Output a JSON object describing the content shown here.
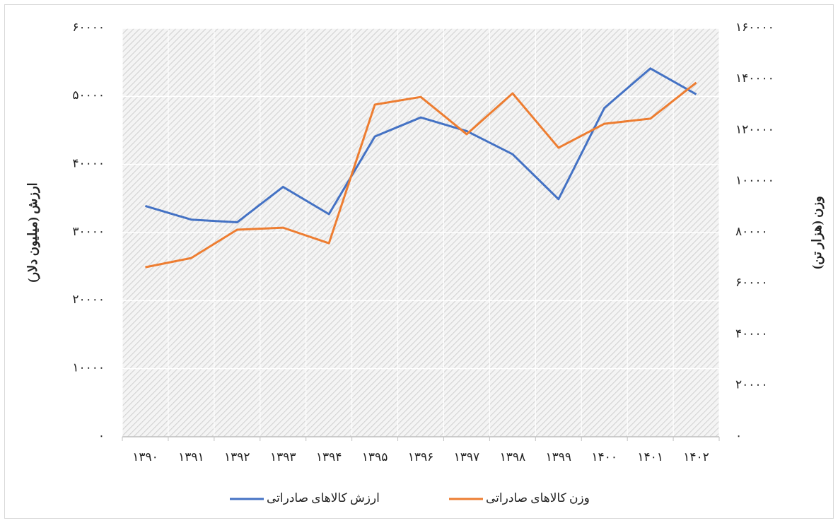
{
  "chart_data": {
    "type": "line",
    "categories": [
      "۱۳۹۰",
      "۱۳۹۱",
      "۱۳۹۲",
      "۱۳۹۳",
      "۱۳۹۴",
      "۱۳۹۵",
      "۱۳۹۶",
      "۱۳۹۷",
      "۱۳۹۸",
      "۱۳۹۹",
      "۱۴۰۰",
      "۱۴۰۱",
      "۱۴۰۲"
    ],
    "series": [
      {
        "name": "ارزش کالاهای صادراتی",
        "color": "#4472c4",
        "values": [
          33900,
          31900,
          31500,
          36700,
          32700,
          44100,
          46900,
          44900,
          41500,
          34900,
          48300,
          54100,
          50300
        ]
      },
      {
        "name": "وزن کالاهای صادراتی",
        "color": "#ed7d31",
        "axis": "y2",
        "values": [
          66400,
          70000,
          81100,
          81900,
          75800,
          130100,
          133100,
          118500,
          134500,
          113200,
          122600,
          124600,
          138700
        ]
      }
    ],
    "ylabel": "ارزش (میلیون دلار)",
    "y2label": "وزن (هزار تن)",
    "ylim": [
      0,
      60000
    ],
    "yticks": [
      {
        "value": 0,
        "label": "۰"
      },
      {
        "value": 10000,
        "label": "۱۰۰۰۰"
      },
      {
        "value": 20000,
        "label": "۲۰۰۰۰"
      },
      {
        "value": 30000,
        "label": "۳۰۰۰۰"
      },
      {
        "value": 40000,
        "label": "۴۰۰۰۰"
      },
      {
        "value": 50000,
        "label": "۵۰۰۰۰"
      },
      {
        "value": 60000,
        "label": "۶۰۰۰۰"
      }
    ],
    "y2lim": [
      0,
      160000
    ],
    "y2ticks": [
      {
        "value": 0,
        "label": "۰"
      },
      {
        "value": 20000,
        "label": "۲۰۰۰۰"
      },
      {
        "value": 40000,
        "label": "۴۰۰۰۰"
      },
      {
        "value": 60000,
        "label": "۶۰۰۰۰"
      },
      {
        "value": 80000,
        "label": "۸۰۰۰۰"
      },
      {
        "value": 100000,
        "label": "۱۰۰۰۰۰"
      },
      {
        "value": 120000,
        "label": "۱۲۰۰۰۰"
      },
      {
        "value": 140000,
        "label": "۱۴۰۰۰۰"
      },
      {
        "value": 160000,
        "label": "۱۶۰۰۰۰"
      }
    ],
    "grid": true,
    "legend": "bottom"
  }
}
